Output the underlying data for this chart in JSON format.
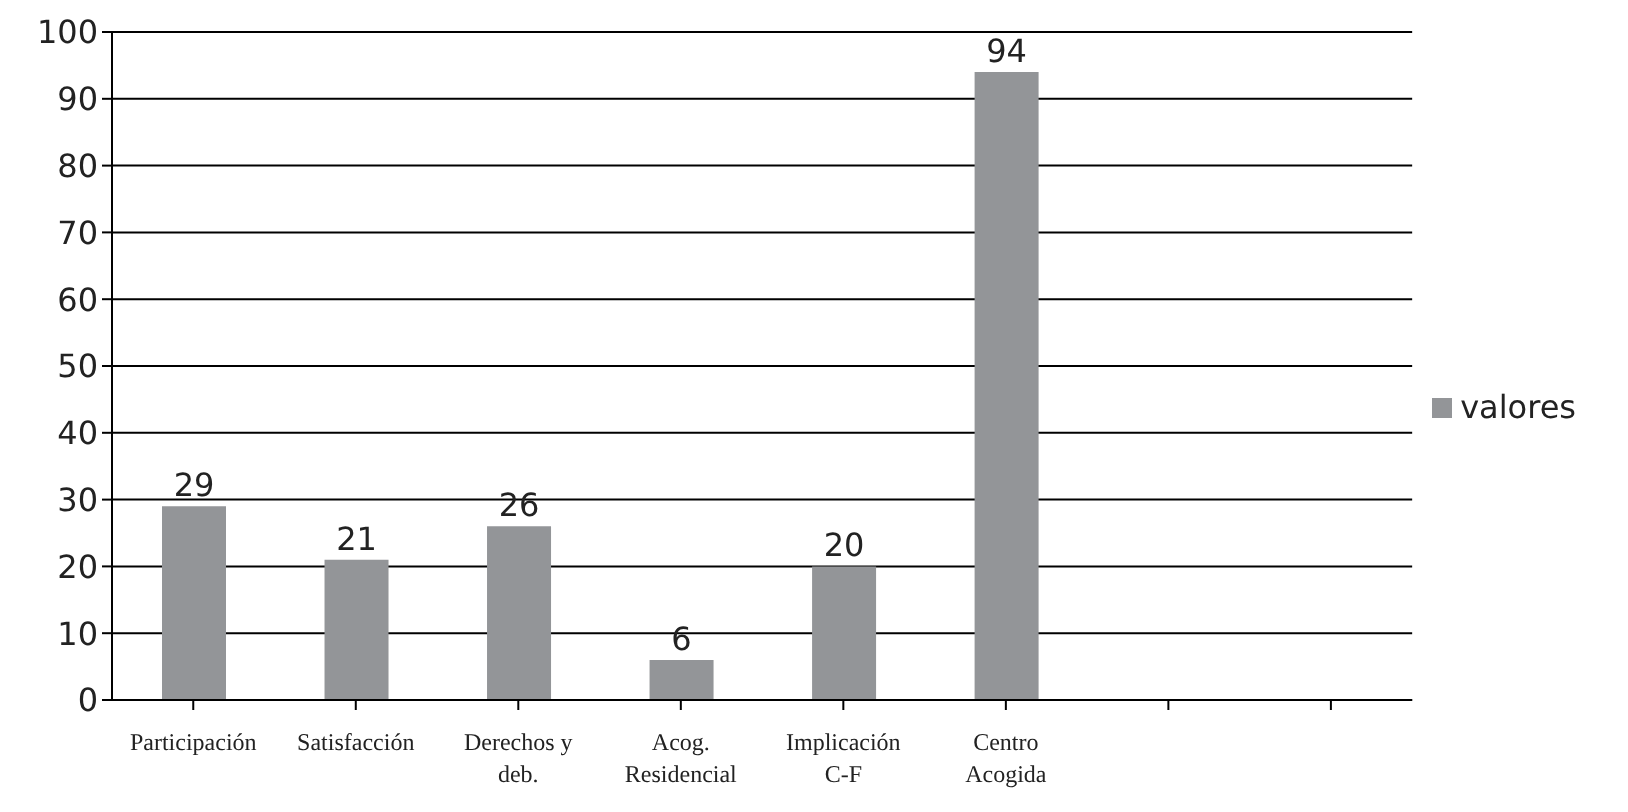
{
  "chart_data": {
    "type": "bar",
    "categories": [
      "Participación",
      "Satisfacción",
      "Derechos y deb.",
      "Acog. Residencial",
      "Implicación C-F",
      "Centro Acogida",
      null,
      null
    ],
    "series": [
      {
        "name": "valores",
        "color": "#939598",
        "values": [
          29,
          21,
          26,
          6,
          20,
          94,
          null,
          null
        ]
      }
    ],
    "ylim": [
      0,
      100
    ],
    "yticks": [
      0,
      10,
      20,
      30,
      40,
      50,
      60,
      70,
      80,
      90,
      100
    ],
    "grid": "y",
    "legend": "right",
    "data_labels": true
  }
}
